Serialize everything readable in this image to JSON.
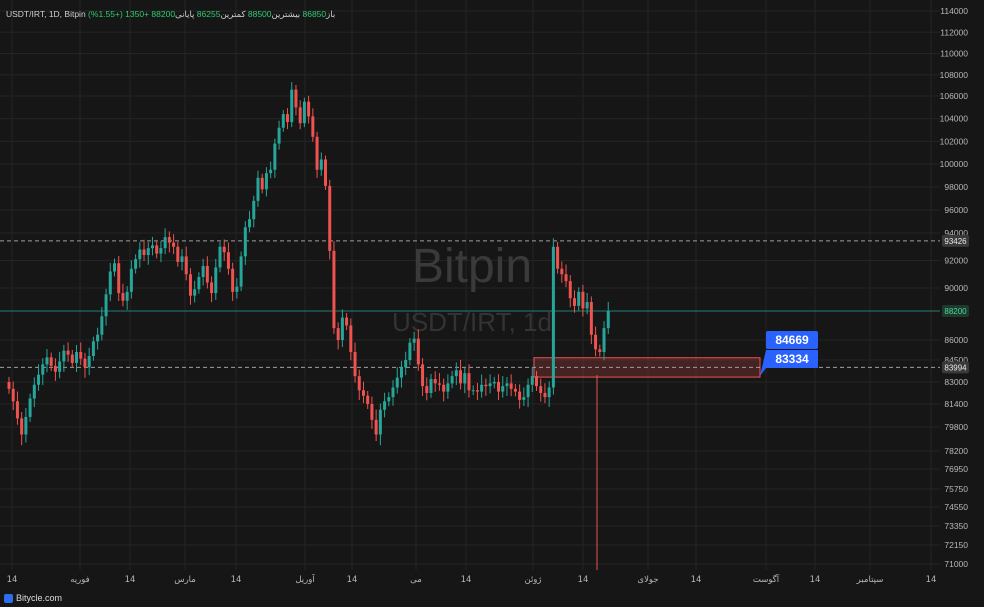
{
  "header": {
    "symbol": "USDT/IRT, 1D, Bitpin",
    "open_label": "باز",
    "open_value": "86850",
    "high_label": "بیشترین",
    "high_value": "88500",
    "low_label": "کمترین",
    "low_value": "86255",
    "close_label": "پایانی",
    "close_value": "88200",
    "change": "+1350 (+1.55%)"
  },
  "watermark": {
    "title": "Bitpin",
    "subtitle": "USDT/IRT, 1d"
  },
  "footer": {
    "brand": "Bitycle.com"
  },
  "colors": {
    "up": "#26a69a",
    "down": "#ef5350",
    "background": "#161616",
    "grid": "#242424",
    "zone": "#ef5350",
    "badge": "#2962ff"
  },
  "chart_data": {
    "type": "candlestick",
    "y_axis_position": "right",
    "y_ticks": [
      114000,
      112000,
      110000,
      108000,
      106000,
      104000,
      102000,
      100000,
      98000,
      96000,
      94000,
      92000,
      90000,
      88200,
      86000,
      84500,
      83000,
      81400,
      79800,
      78200,
      76950,
      75750,
      74550,
      73350,
      72150,
      71000
    ],
    "y_tick_labels": [
      "114000",
      "112000",
      "110000",
      "108000",
      "106000",
      "104000",
      "102000",
      "100000",
      "98000",
      "96000",
      "94000",
      "92000",
      "90000",
      "88200",
      "86000",
      "84500",
      "83000",
      "81400",
      "79800",
      "78200",
      "76950",
      "75750",
      "74550",
      "73350",
      "72150",
      "71000"
    ],
    "x_labels": [
      "14",
      "فوریه",
      "14",
      "مارس",
      "14",
      "آوریل",
      "14",
      "می",
      "14",
      "ژوئن",
      "14",
      "جولای",
      "14",
      "آگوست",
      "14",
      "سپتامبر",
      "14"
    ],
    "horizontal_lines": [
      {
        "value": 93426,
        "label": "93426",
        "style": "dashed"
      },
      {
        "value": 88200,
        "label": "88200",
        "style": "solid-green"
      },
      {
        "value": 83994,
        "label": "83994",
        "style": "dashed"
      }
    ],
    "zone": {
      "top": 84669,
      "bottom": 83334,
      "top_label": "84669",
      "bottom_label": "83334"
    },
    "candles_close": [
      82500,
      81600,
      80400,
      79300,
      80500,
      81800,
      82800,
      83500,
      84200,
      84700,
      84100,
      83700,
      84400,
      85200,
      84900,
      84300,
      85100,
      84600,
      84000,
      84800,
      85900,
      86400,
      87800,
      89500,
      91200,
      91800,
      89600,
      89000,
      89700,
      91400,
      92100,
      92800,
      92400,
      92900,
      93100,
      92500,
      92900,
      93700,
      93300,
      93000,
      91900,
      92300,
      91000,
      89400,
      89900,
      90800,
      91600,
      90400,
      89600,
      91500,
      93000,
      92600,
      91400,
      89700,
      90100,
      92300,
      94500,
      95200,
      96800,
      98800,
      97800,
      99200,
      99500,
      101800,
      103200,
      104400,
      103700,
      106600,
      105000,
      103600,
      105500,
      104200,
      102400,
      99500,
      100400,
      98100,
      92700,
      86900,
      86000,
      87700,
      87100,
      85100,
      83400,
      82400,
      82000,
      81400,
      80300,
      79300,
      81000,
      81600,
      81900,
      82600,
      83300,
      84000,
      84500,
      85800,
      86100,
      84200,
      82700,
      82200,
      83200,
      82900,
      82800,
      82300,
      82900,
      83400,
      83800,
      82900,
      83600,
      82400,
      82400,
      82300,
      82800,
      82700,
      82900,
      83000,
      82300,
      82700,
      82900,
      82500,
      82300,
      81700,
      81900,
      82800,
      83400,
      82700,
      82200,
      81900,
      82600,
      93000,
      91400,
      91000,
      90500,
      89200,
      88600,
      89700,
      88400,
      88900,
      86400,
      85300,
      85100,
      86900,
      88200
    ]
  }
}
